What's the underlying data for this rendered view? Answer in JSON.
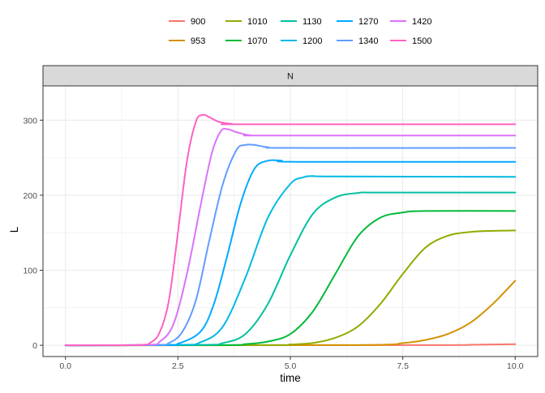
{
  "chart_data": {
    "type": "line",
    "facet_label": "N",
    "xlabel": "time",
    "ylabel": "L",
    "xlim": [
      -0.5,
      10.5
    ],
    "ylim": [
      -15,
      323
    ],
    "x_ticks": [
      0.0,
      2.5,
      5.0,
      7.5,
      10.0
    ],
    "x_tick_labels": [
      "0.0",
      "2.5",
      "5.0",
      "7.5",
      "10.0"
    ],
    "y_ticks": [
      0,
      100,
      200,
      300
    ],
    "y_tick_labels": [
      "0",
      "100",
      "200",
      "300"
    ],
    "grid": true,
    "legend_position": "top",
    "series": [
      {
        "name": "900",
        "color": "#F8766D",
        "points": [
          [
            0,
            0
          ],
          [
            8,
            0.2
          ],
          [
            9,
            0.6
          ],
          [
            9.5,
            1.0
          ],
          [
            10,
            1.5
          ]
        ]
      },
      {
        "name": "953",
        "color": "#D39200",
        "points": [
          [
            0,
            0
          ],
          [
            6.5,
            0.3
          ],
          [
            7.5,
            3
          ],
          [
            8,
            7
          ],
          [
            8.5,
            15
          ],
          [
            9,
            30
          ],
          [
            9.5,
            55
          ],
          [
            10,
            86
          ]
        ]
      },
      {
        "name": "1010",
        "color": "#93AA00",
        "points": [
          [
            0,
            0
          ],
          [
            4.5,
            0.3
          ],
          [
            5,
            1
          ],
          [
            5.5,
            3
          ],
          [
            6,
            10
          ],
          [
            6.5,
            25
          ],
          [
            7,
            55
          ],
          [
            7.5,
            95
          ],
          [
            8,
            130
          ],
          [
            8.5,
            146
          ],
          [
            9,
            151
          ],
          [
            9.5,
            152.5
          ],
          [
            10,
            153
          ]
        ]
      },
      {
        "name": "1070",
        "color": "#00BA38",
        "points": [
          [
            0,
            0
          ],
          [
            3.5,
            0.3
          ],
          [
            4,
            1.5
          ],
          [
            4.5,
            5
          ],
          [
            5,
            15
          ],
          [
            5.5,
            45
          ],
          [
            6,
            95
          ],
          [
            6.5,
            145
          ],
          [
            7,
            170
          ],
          [
            7.5,
            177
          ],
          [
            8,
            179
          ],
          [
            10,
            179
          ]
        ]
      },
      {
        "name": "1130",
        "color": "#00C19F",
        "points": [
          [
            0,
            0
          ],
          [
            3,
            0.5
          ],
          [
            3.5,
            3
          ],
          [
            4,
            15
          ],
          [
            4.5,
            55
          ],
          [
            5,
            120
          ],
          [
            5.5,
            175
          ],
          [
            6,
            197
          ],
          [
            6.5,
            203
          ],
          [
            7,
            203.5
          ],
          [
            10,
            203.5
          ]
        ]
      },
      {
        "name": "1200",
        "color": "#00B9E3",
        "points": [
          [
            0,
            0
          ],
          [
            2.5,
            0.5
          ],
          [
            3,
            4
          ],
          [
            3.5,
            25
          ],
          [
            4,
            90
          ],
          [
            4.5,
            170
          ],
          [
            5,
            215
          ],
          [
            5.3,
            224
          ],
          [
            5.5,
            225.5
          ],
          [
            6,
            225
          ],
          [
            10,
            224.5
          ]
        ]
      },
      {
        "name": "1270",
        "color": "#00A9FF",
        "points": [
          [
            0,
            0
          ],
          [
            2.2,
            0.5
          ],
          [
            2.5,
            2
          ],
          [
            3,
            18
          ],
          [
            3.3,
            55
          ],
          [
            3.6,
            120
          ],
          [
            3.9,
            190
          ],
          [
            4.2,
            235
          ],
          [
            4.5,
            246
          ],
          [
            4.8,
            246
          ],
          [
            5.2,
            244.5
          ],
          [
            10,
            244.5
          ]
        ]
      },
      {
        "name": "1340",
        "color": "#619CFF",
        "points": [
          [
            0,
            0
          ],
          [
            2,
            0.5
          ],
          [
            2.3,
            3
          ],
          [
            2.6,
            18
          ],
          [
            2.9,
            60
          ],
          [
            3.2,
            140
          ],
          [
            3.5,
            215
          ],
          [
            3.8,
            260
          ],
          [
            4,
            267
          ],
          [
            4.2,
            267
          ],
          [
            4.5,
            264
          ],
          [
            5,
            263
          ],
          [
            10,
            263
          ]
        ]
      },
      {
        "name": "1420",
        "color": "#DB72FB",
        "points": [
          [
            0,
            0
          ],
          [
            1.8,
            0.5
          ],
          [
            2.1,
            5
          ],
          [
            2.4,
            28
          ],
          [
            2.7,
            95
          ],
          [
            3,
            185
          ],
          [
            3.25,
            255
          ],
          [
            3.45,
            285
          ],
          [
            3.6,
            288
          ],
          [
            3.8,
            284
          ],
          [
            4.1,
            280
          ],
          [
            4.5,
            279.5
          ],
          [
            10,
            279.5
          ]
        ]
      },
      {
        "name": "1500",
        "color": "#FF61C3",
        "points": [
          [
            0,
            0
          ],
          [
            1.6,
            0.5
          ],
          [
            1.9,
            4
          ],
          [
            2.1,
            18
          ],
          [
            2.3,
            60
          ],
          [
            2.5,
            150
          ],
          [
            2.7,
            245
          ],
          [
            2.9,
            298
          ],
          [
            3.05,
            307
          ],
          [
            3.2,
            304
          ],
          [
            3.4,
            298
          ],
          [
            3.7,
            295
          ],
          [
            4,
            294.5
          ],
          [
            10,
            294.5
          ]
        ]
      }
    ]
  }
}
